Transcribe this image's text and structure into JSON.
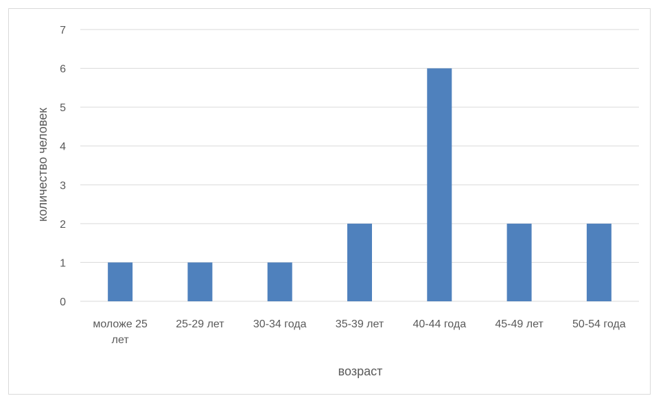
{
  "chart_data": {
    "type": "bar",
    "categories": [
      [
        "моложе 25",
        "лет"
      ],
      [
        "25-29 лет"
      ],
      [
        "30-34 года"
      ],
      [
        "35-39 лет"
      ],
      [
        "40-44 года"
      ],
      [
        "45-49 лет"
      ],
      [
        "50-54 года"
      ]
    ],
    "values": [
      1,
      1,
      1,
      2,
      6,
      2,
      2
    ],
    "xlabel": "возраст",
    "ylabel": "количество человек",
    "ylim": [
      0,
      7
    ],
    "yticks": [
      0,
      1,
      2,
      3,
      4,
      5,
      6,
      7
    ],
    "grid": true,
    "legend": "none",
    "colors": {
      "bar": "#4f81bd",
      "grid": "#d9d9d9",
      "text": "#595959"
    }
  }
}
